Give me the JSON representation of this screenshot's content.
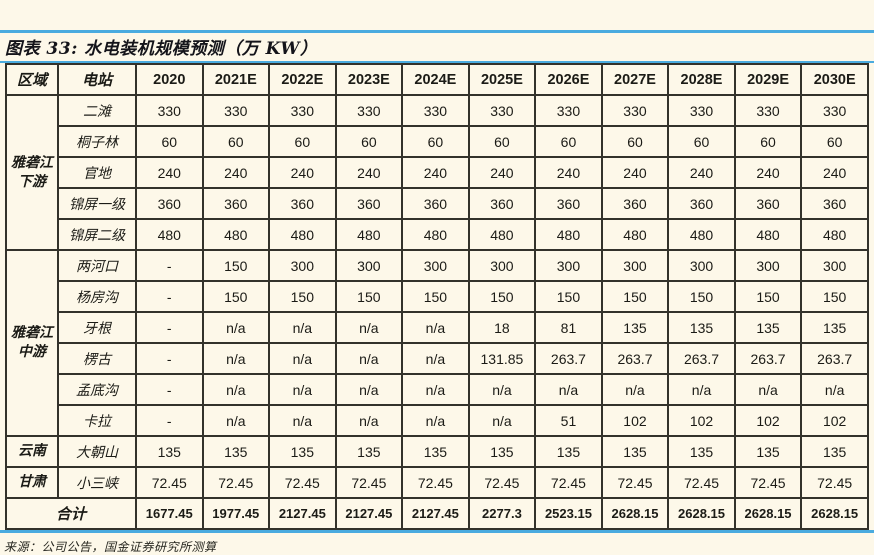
{
  "title": "图表 33:  水电装机规模预测（万 KW）",
  "source": "来源：公司公告，国金证券研究所测算",
  "colors": {
    "background": "#fdf8e9",
    "rule_blue": "#4aabdf",
    "table_border": "#33322b",
    "text": "#1b1b16"
  },
  "chart_data": {
    "type": "table",
    "columns": [
      "区域",
      "电站",
      "2020",
      "2021E",
      "2022E",
      "2023E",
      "2024E",
      "2025E",
      "2026E",
      "2027E",
      "2028E",
      "2029E",
      "2030E"
    ],
    "regions": [
      {
        "name": "雅砻江下游",
        "stations": [
          {
            "name": "二滩",
            "values": [
              "330",
              "330",
              "330",
              "330",
              "330",
              "330",
              "330",
              "330",
              "330",
              "330",
              "330"
            ]
          },
          {
            "name": "桐子林",
            "values": [
              "60",
              "60",
              "60",
              "60",
              "60",
              "60",
              "60",
              "60",
              "60",
              "60",
              "60"
            ]
          },
          {
            "name": "官地",
            "values": [
              "240",
              "240",
              "240",
              "240",
              "240",
              "240",
              "240",
              "240",
              "240",
              "240",
              "240"
            ]
          },
          {
            "name": "锦屏一级",
            "values": [
              "360",
              "360",
              "360",
              "360",
              "360",
              "360",
              "360",
              "360",
              "360",
              "360",
              "360"
            ]
          },
          {
            "name": "锦屏二级",
            "values": [
              "480",
              "480",
              "480",
              "480",
              "480",
              "480",
              "480",
              "480",
              "480",
              "480",
              "480"
            ]
          }
        ]
      },
      {
        "name": "雅砻江中游",
        "stations": [
          {
            "name": "两河口",
            "values": [
              "-",
              "150",
              "300",
              "300",
              "300",
              "300",
              "300",
              "300",
              "300",
              "300",
              "300"
            ]
          },
          {
            "name": "杨房沟",
            "values": [
              "-",
              "150",
              "150",
              "150",
              "150",
              "150",
              "150",
              "150",
              "150",
              "150",
              "150"
            ]
          },
          {
            "name": "牙根",
            "values": [
              "-",
              "n/a",
              "n/a",
              "n/a",
              "n/a",
              "18",
              "81",
              "135",
              "135",
              "135",
              "135"
            ]
          },
          {
            "name": "楞古",
            "values": [
              "-",
              "n/a",
              "n/a",
              "n/a",
              "n/a",
              "131.85",
              "263.7",
              "263.7",
              "263.7",
              "263.7",
              "263.7"
            ]
          },
          {
            "name": "孟底沟",
            "values": [
              "-",
              "n/a",
              "n/a",
              "n/a",
              "n/a",
              "n/a",
              "n/a",
              "n/a",
              "n/a",
              "n/a",
              "n/a"
            ]
          },
          {
            "name": "卡拉",
            "values": [
              "-",
              "n/a",
              "n/a",
              "n/a",
              "n/a",
              "n/a",
              "51",
              "102",
              "102",
              "102",
              "102"
            ]
          }
        ]
      },
      {
        "name": "云南",
        "stations": [
          {
            "name": "大朝山",
            "values": [
              "135",
              "135",
              "135",
              "135",
              "135",
              "135",
              "135",
              "135",
              "135",
              "135",
              "135"
            ]
          }
        ]
      },
      {
        "name": "甘肃",
        "stations": [
          {
            "name": "小三峡",
            "values": [
              "72.45",
              "72.45",
              "72.45",
              "72.45",
              "72.45",
              "72.45",
              "72.45",
              "72.45",
              "72.45",
              "72.45",
              "72.45"
            ]
          }
        ]
      }
    ],
    "total": {
      "label": "合计",
      "values": [
        "1677.45",
        "1977.45",
        "2127.45",
        "2127.45",
        "2127.45",
        "2277.3",
        "2523.15",
        "2628.15",
        "2628.15",
        "2628.15",
        "2628.15"
      ]
    }
  }
}
